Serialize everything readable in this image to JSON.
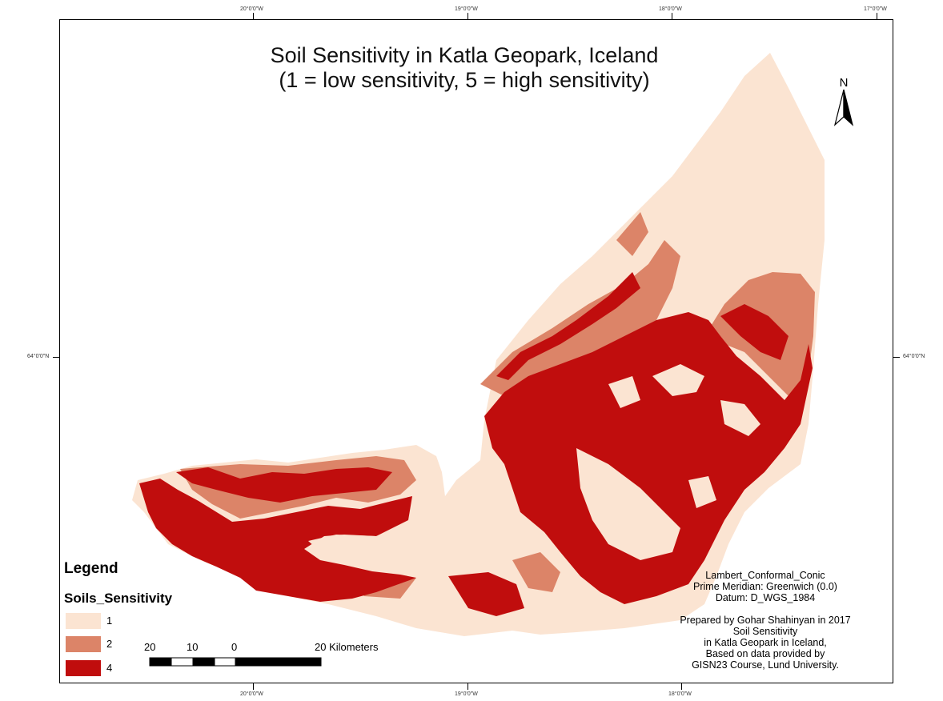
{
  "map": {
    "title_line1": "Soil Sensitivity in Katla Geopark, Iceland",
    "title_line2": "(1 = low sensitivity, 5 = high sensitivity)",
    "graticule": {
      "top": [
        "20°0'0\"W",
        "19°0'0\"W",
        "18°0'0\"W",
        "17°0'0\"W"
      ],
      "bottom": [
        "20°0'0\"W",
        "19°0'0\"W",
        "18°0'0\"W"
      ],
      "left": "64°0'0\"N",
      "right": "64°0'0\"N"
    },
    "north_arrow": {
      "label": "N",
      "icon": "north-arrow-icon"
    },
    "legend": {
      "title": "Legend",
      "layer_name": "Soils_Sensitivity",
      "classes": [
        {
          "label": "1",
          "color": "#fbe4d2"
        },
        {
          "label": "2",
          "color": "#dc8468"
        },
        {
          "label": "4",
          "color": "#c00d0d"
        }
      ]
    },
    "scale_bar": {
      "labels": [
        "20",
        "10",
        "0",
        "20 Kilometers"
      ]
    },
    "projection": {
      "line1": "Lambert_Conformal_Conic",
      "line2": "Prime Meridian: Greenwich (0.0)",
      "line3": "Datum: D_WGS_1984"
    },
    "credits": {
      "line1": "Prepared by Gohar Shahinyan in 2017",
      "line2": "Soil Sensitivity",
      "line3": "in Katla Geopark in Iceland,",
      "line4": "Based on data provided by",
      "line5": "GISN23 Course, Lund University."
    },
    "colors": {
      "class1": "#fbe4d2",
      "class2": "#dc8468",
      "class4": "#c00d0d"
    }
  }
}
